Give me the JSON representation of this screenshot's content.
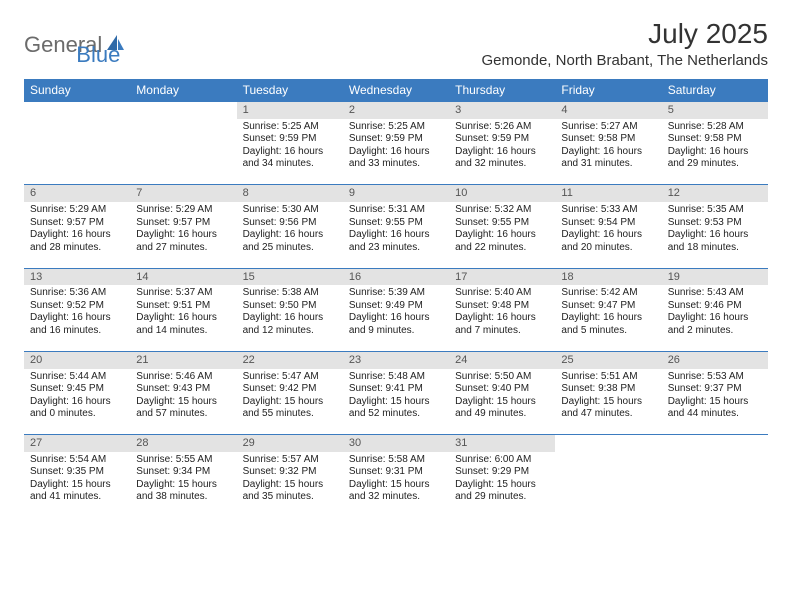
{
  "brand": {
    "part1": "General",
    "part2": "Blue"
  },
  "title": "July 2025",
  "location": "Gemonde, North Brabant, The Netherlands",
  "colors": {
    "header_bg": "#3b7bbf",
    "header_text": "#ffffff",
    "daynum_bg": "#e3e3e3",
    "daynum_text": "#555555",
    "body_text": "#222222",
    "page_bg": "#ffffff",
    "logo_gray": "#6b6b6b",
    "logo_blue": "#3b7bbf"
  },
  "day_headers": [
    "Sunday",
    "Monday",
    "Tuesday",
    "Wednesday",
    "Thursday",
    "Friday",
    "Saturday"
  ],
  "weeks": [
    [
      null,
      null,
      {
        "n": "1",
        "sr": "Sunrise: 5:25 AM",
        "ss": "Sunset: 9:59 PM",
        "dl": "Daylight: 16 hours and 34 minutes."
      },
      {
        "n": "2",
        "sr": "Sunrise: 5:25 AM",
        "ss": "Sunset: 9:59 PM",
        "dl": "Daylight: 16 hours and 33 minutes."
      },
      {
        "n": "3",
        "sr": "Sunrise: 5:26 AM",
        "ss": "Sunset: 9:59 PM",
        "dl": "Daylight: 16 hours and 32 minutes."
      },
      {
        "n": "4",
        "sr": "Sunrise: 5:27 AM",
        "ss": "Sunset: 9:58 PM",
        "dl": "Daylight: 16 hours and 31 minutes."
      },
      {
        "n": "5",
        "sr": "Sunrise: 5:28 AM",
        "ss": "Sunset: 9:58 PM",
        "dl": "Daylight: 16 hours and 29 minutes."
      }
    ],
    [
      {
        "n": "6",
        "sr": "Sunrise: 5:29 AM",
        "ss": "Sunset: 9:57 PM",
        "dl": "Daylight: 16 hours and 28 minutes."
      },
      {
        "n": "7",
        "sr": "Sunrise: 5:29 AM",
        "ss": "Sunset: 9:57 PM",
        "dl": "Daylight: 16 hours and 27 minutes."
      },
      {
        "n": "8",
        "sr": "Sunrise: 5:30 AM",
        "ss": "Sunset: 9:56 PM",
        "dl": "Daylight: 16 hours and 25 minutes."
      },
      {
        "n": "9",
        "sr": "Sunrise: 5:31 AM",
        "ss": "Sunset: 9:55 PM",
        "dl": "Daylight: 16 hours and 23 minutes."
      },
      {
        "n": "10",
        "sr": "Sunrise: 5:32 AM",
        "ss": "Sunset: 9:55 PM",
        "dl": "Daylight: 16 hours and 22 minutes."
      },
      {
        "n": "11",
        "sr": "Sunrise: 5:33 AM",
        "ss": "Sunset: 9:54 PM",
        "dl": "Daylight: 16 hours and 20 minutes."
      },
      {
        "n": "12",
        "sr": "Sunrise: 5:35 AM",
        "ss": "Sunset: 9:53 PM",
        "dl": "Daylight: 16 hours and 18 minutes."
      }
    ],
    [
      {
        "n": "13",
        "sr": "Sunrise: 5:36 AM",
        "ss": "Sunset: 9:52 PM",
        "dl": "Daylight: 16 hours and 16 minutes."
      },
      {
        "n": "14",
        "sr": "Sunrise: 5:37 AM",
        "ss": "Sunset: 9:51 PM",
        "dl": "Daylight: 16 hours and 14 minutes."
      },
      {
        "n": "15",
        "sr": "Sunrise: 5:38 AM",
        "ss": "Sunset: 9:50 PM",
        "dl": "Daylight: 16 hours and 12 minutes."
      },
      {
        "n": "16",
        "sr": "Sunrise: 5:39 AM",
        "ss": "Sunset: 9:49 PM",
        "dl": "Daylight: 16 hours and 9 minutes."
      },
      {
        "n": "17",
        "sr": "Sunrise: 5:40 AM",
        "ss": "Sunset: 9:48 PM",
        "dl": "Daylight: 16 hours and 7 minutes."
      },
      {
        "n": "18",
        "sr": "Sunrise: 5:42 AM",
        "ss": "Sunset: 9:47 PM",
        "dl": "Daylight: 16 hours and 5 minutes."
      },
      {
        "n": "19",
        "sr": "Sunrise: 5:43 AM",
        "ss": "Sunset: 9:46 PM",
        "dl": "Daylight: 16 hours and 2 minutes."
      }
    ],
    [
      {
        "n": "20",
        "sr": "Sunrise: 5:44 AM",
        "ss": "Sunset: 9:45 PM",
        "dl": "Daylight: 16 hours and 0 minutes."
      },
      {
        "n": "21",
        "sr": "Sunrise: 5:46 AM",
        "ss": "Sunset: 9:43 PM",
        "dl": "Daylight: 15 hours and 57 minutes."
      },
      {
        "n": "22",
        "sr": "Sunrise: 5:47 AM",
        "ss": "Sunset: 9:42 PM",
        "dl": "Daylight: 15 hours and 55 minutes."
      },
      {
        "n": "23",
        "sr": "Sunrise: 5:48 AM",
        "ss": "Sunset: 9:41 PM",
        "dl": "Daylight: 15 hours and 52 minutes."
      },
      {
        "n": "24",
        "sr": "Sunrise: 5:50 AM",
        "ss": "Sunset: 9:40 PM",
        "dl": "Daylight: 15 hours and 49 minutes."
      },
      {
        "n": "25",
        "sr": "Sunrise: 5:51 AM",
        "ss": "Sunset: 9:38 PM",
        "dl": "Daylight: 15 hours and 47 minutes."
      },
      {
        "n": "26",
        "sr": "Sunrise: 5:53 AM",
        "ss": "Sunset: 9:37 PM",
        "dl": "Daylight: 15 hours and 44 minutes."
      }
    ],
    [
      {
        "n": "27",
        "sr": "Sunrise: 5:54 AM",
        "ss": "Sunset: 9:35 PM",
        "dl": "Daylight: 15 hours and 41 minutes."
      },
      {
        "n": "28",
        "sr": "Sunrise: 5:55 AM",
        "ss": "Sunset: 9:34 PM",
        "dl": "Daylight: 15 hours and 38 minutes."
      },
      {
        "n": "29",
        "sr": "Sunrise: 5:57 AM",
        "ss": "Sunset: 9:32 PM",
        "dl": "Daylight: 15 hours and 35 minutes."
      },
      {
        "n": "30",
        "sr": "Sunrise: 5:58 AM",
        "ss": "Sunset: 9:31 PM",
        "dl": "Daylight: 15 hours and 32 minutes."
      },
      {
        "n": "31",
        "sr": "Sunrise: 6:00 AM",
        "ss": "Sunset: 9:29 PM",
        "dl": "Daylight: 15 hours and 29 minutes."
      },
      null,
      null
    ]
  ]
}
